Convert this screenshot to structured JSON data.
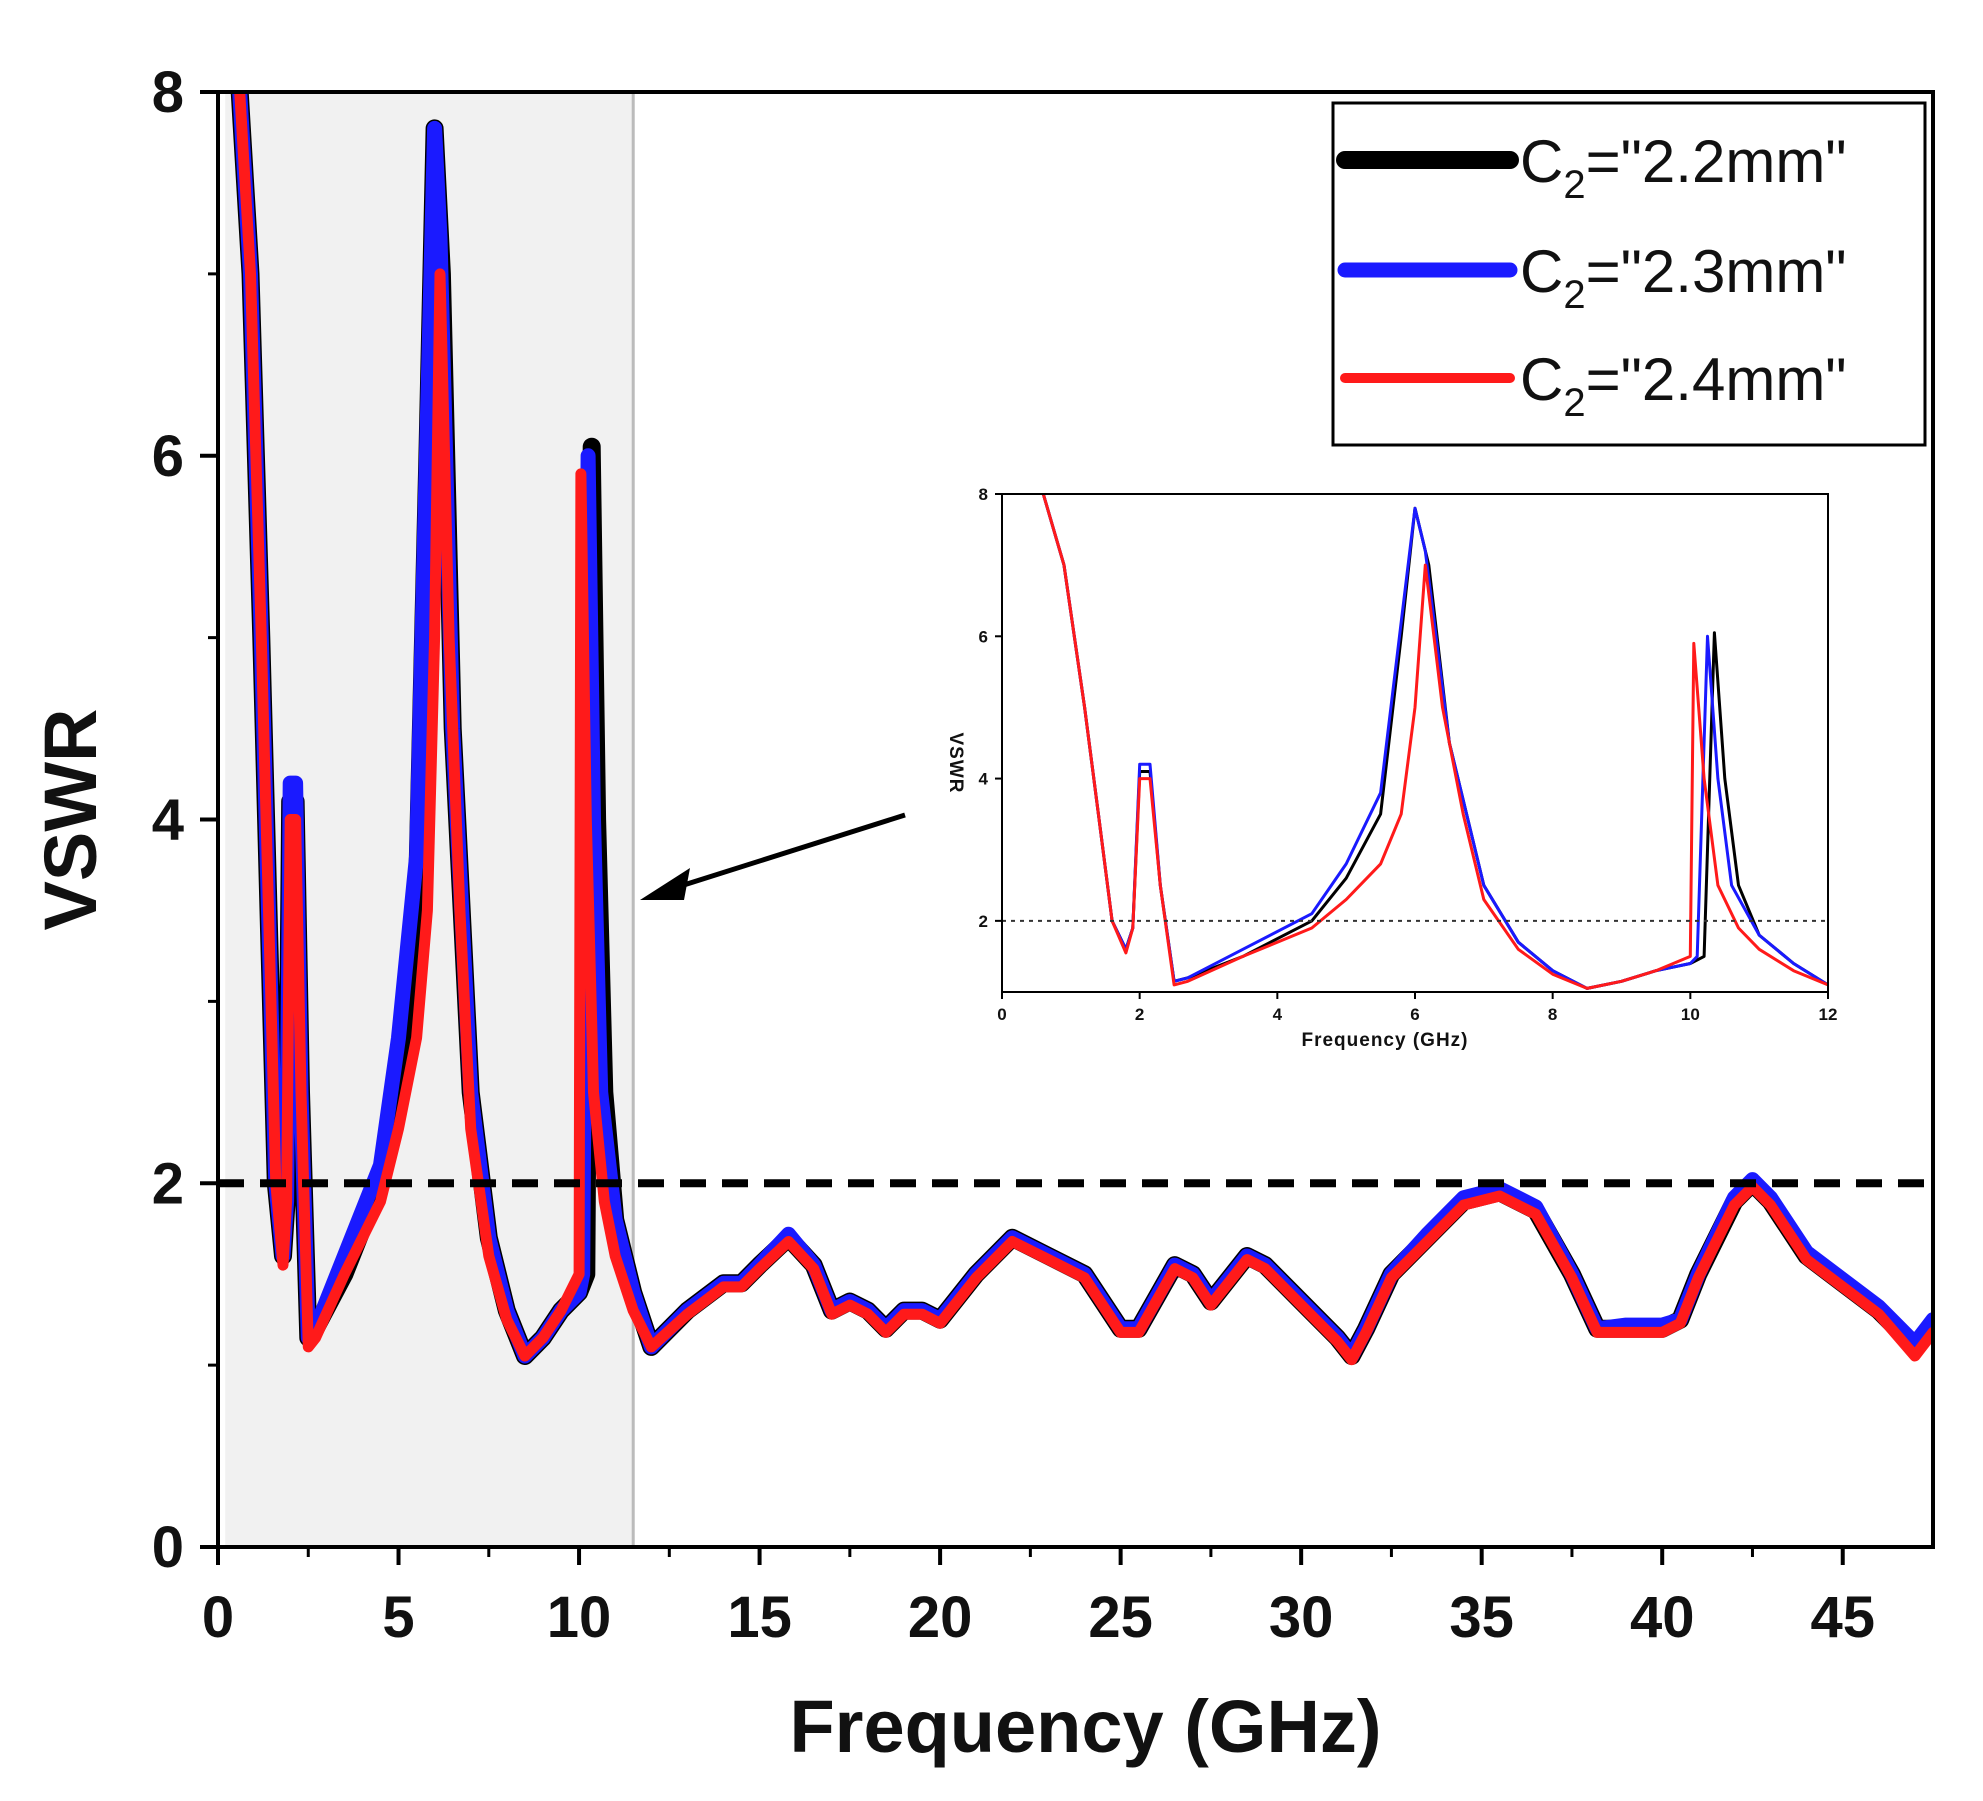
{
  "chart_data": {
    "type": "line",
    "xlabel": "Frequency (GHz)",
    "ylabel": "VSWR",
    "xlim": [
      0,
      47.5
    ],
    "ylim": [
      0,
      8
    ],
    "xticks": [
      "0",
      "5",
      "10",
      "15",
      "20",
      "25",
      "30",
      "35",
      "40",
      "45"
    ],
    "yticks": [
      "0",
      "2",
      "4",
      "6",
      "8"
    ],
    "reference_line": {
      "y": 2,
      "style": "dashed"
    },
    "highlight_region": {
      "x": [
        0.2,
        11.5
      ]
    },
    "annotation": "arrow from inset pointing to highlighted band",
    "legend_position": "top-right",
    "series": [
      {
        "name": "C2=\"2.2mm\"",
        "label_main": "C",
        "label_sub": "2",
        "label_rest": "=\"2.2mm\"",
        "color": "#000000",
        "points": [
          [
            0.6,
            8
          ],
          [
            0.9,
            7.0
          ],
          [
            1.2,
            5.0
          ],
          [
            1.4,
            3.5
          ],
          [
            1.6,
            2.0
          ],
          [
            1.8,
            1.6
          ],
          [
            1.9,
            1.9
          ],
          [
            2.0,
            4.1
          ],
          [
            2.15,
            4.1
          ],
          [
            2.3,
            2.5
          ],
          [
            2.5,
            1.15
          ],
          [
            2.7,
            1.2
          ],
          [
            3.5,
            1.5
          ],
          [
            4.5,
            2.0
          ],
          [
            5.0,
            2.6
          ],
          [
            5.5,
            3.5
          ],
          [
            5.8,
            6.0
          ],
          [
            6.0,
            7.8
          ],
          [
            6.2,
            7.0
          ],
          [
            6.5,
            4.5
          ],
          [
            7.0,
            2.5
          ],
          [
            7.5,
            1.7
          ],
          [
            8.0,
            1.3
          ],
          [
            8.5,
            1.05
          ],
          [
            9.0,
            1.15
          ],
          [
            9.5,
            1.3
          ],
          [
            10.0,
            1.4
          ],
          [
            10.2,
            1.5
          ],
          [
            10.35,
            6.05
          ],
          [
            10.5,
            4.0
          ],
          [
            10.7,
            2.5
          ],
          [
            11.0,
            1.8
          ],
          [
            11.5,
            1.4
          ],
          [
            12.0,
            1.1
          ],
          [
            13.0,
            1.3
          ],
          [
            14.0,
            1.45
          ],
          [
            14.5,
            1.45
          ],
          [
            15.0,
            1.55
          ],
          [
            15.8,
            1.7
          ],
          [
            16.5,
            1.55
          ],
          [
            17.0,
            1.3
          ],
          [
            17.5,
            1.35
          ],
          [
            18.0,
            1.3
          ],
          [
            18.5,
            1.2
          ],
          [
            19.0,
            1.3
          ],
          [
            19.5,
            1.3
          ],
          [
            20.0,
            1.25
          ],
          [
            21.0,
            1.5
          ],
          [
            22.0,
            1.7
          ],
          [
            23.0,
            1.6
          ],
          [
            24.0,
            1.5
          ],
          [
            25.0,
            1.2
          ],
          [
            25.5,
            1.2
          ],
          [
            26.5,
            1.55
          ],
          [
            27.0,
            1.5
          ],
          [
            27.5,
            1.35
          ],
          [
            28.5,
            1.6
          ],
          [
            29.0,
            1.55
          ],
          [
            30.0,
            1.35
          ],
          [
            31.0,
            1.15
          ],
          [
            31.4,
            1.05
          ],
          [
            31.8,
            1.2
          ],
          [
            32.5,
            1.5
          ],
          [
            33.5,
            1.7
          ],
          [
            34.5,
            1.9
          ],
          [
            35.5,
            1.95
          ],
          [
            36.5,
            1.85
          ],
          [
            37.5,
            1.5
          ],
          [
            38.2,
            1.2
          ],
          [
            39.0,
            1.2
          ],
          [
            40.0,
            1.2
          ],
          [
            40.5,
            1.25
          ],
          [
            41.0,
            1.5
          ],
          [
            42.0,
            1.9
          ],
          [
            42.5,
            2.0
          ],
          [
            43.0,
            1.9
          ],
          [
            44.0,
            1.6
          ],
          [
            45.0,
            1.45
          ],
          [
            46.0,
            1.3
          ],
          [
            47.0,
            1.1
          ],
          [
            47.5,
            1.2
          ]
        ]
      },
      {
        "name": "C2=\"2.3mm\"",
        "label_main": "C",
        "label_sub": "2",
        "label_rest": "=\"2.3mm\"",
        "color": "#1a1aff",
        "points": [
          [
            0.6,
            8
          ],
          [
            0.9,
            7.0
          ],
          [
            1.2,
            5.0
          ],
          [
            1.4,
            3.5
          ],
          [
            1.6,
            2.0
          ],
          [
            1.8,
            1.6
          ],
          [
            1.9,
            1.9
          ],
          [
            2.0,
            4.2
          ],
          [
            2.15,
            4.2
          ],
          [
            2.3,
            2.5
          ],
          [
            2.5,
            1.15
          ],
          [
            2.7,
            1.2
          ],
          [
            3.5,
            1.6
          ],
          [
            4.5,
            2.1
          ],
          [
            5.0,
            2.8
          ],
          [
            5.5,
            3.8
          ],
          [
            5.8,
            6.2
          ],
          [
            6.0,
            7.8
          ],
          [
            6.15,
            7.2
          ],
          [
            6.5,
            4.5
          ],
          [
            7.0,
            2.5
          ],
          [
            7.5,
            1.7
          ],
          [
            8.0,
            1.3
          ],
          [
            8.5,
            1.05
          ],
          [
            9.0,
            1.15
          ],
          [
            9.5,
            1.3
          ],
          [
            10.0,
            1.4
          ],
          [
            10.1,
            1.5
          ],
          [
            10.25,
            6.0
          ],
          [
            10.4,
            4.0
          ],
          [
            10.6,
            2.5
          ],
          [
            11.0,
            1.8
          ],
          [
            11.5,
            1.4
          ],
          [
            12.0,
            1.1
          ],
          [
            13.0,
            1.3
          ],
          [
            14.0,
            1.45
          ],
          [
            14.5,
            1.45
          ],
          [
            15.0,
            1.55
          ],
          [
            15.8,
            1.72
          ],
          [
            16.5,
            1.55
          ],
          [
            17.0,
            1.3
          ],
          [
            17.5,
            1.35
          ],
          [
            18.0,
            1.3
          ],
          [
            18.5,
            1.2
          ],
          [
            19.0,
            1.3
          ],
          [
            19.5,
            1.3
          ],
          [
            20.0,
            1.25
          ],
          [
            21.0,
            1.5
          ],
          [
            22.0,
            1.7
          ],
          [
            23.0,
            1.6
          ],
          [
            24.0,
            1.5
          ],
          [
            25.0,
            1.2
          ],
          [
            25.5,
            1.2
          ],
          [
            26.5,
            1.55
          ],
          [
            27.0,
            1.5
          ],
          [
            27.5,
            1.35
          ],
          [
            28.5,
            1.6
          ],
          [
            29.0,
            1.55
          ],
          [
            30.0,
            1.35
          ],
          [
            31.0,
            1.15
          ],
          [
            31.4,
            1.05
          ],
          [
            31.8,
            1.2
          ],
          [
            32.5,
            1.5
          ],
          [
            33.5,
            1.72
          ],
          [
            34.5,
            1.92
          ],
          [
            35.5,
            1.97
          ],
          [
            36.5,
            1.87
          ],
          [
            37.5,
            1.5
          ],
          [
            38.2,
            1.2
          ],
          [
            39.0,
            1.22
          ],
          [
            40.0,
            1.22
          ],
          [
            40.5,
            1.25
          ],
          [
            41.0,
            1.5
          ],
          [
            42.0,
            1.92
          ],
          [
            42.5,
            2.02
          ],
          [
            43.0,
            1.92
          ],
          [
            44.0,
            1.62
          ],
          [
            45.0,
            1.47
          ],
          [
            46.0,
            1.32
          ],
          [
            47.0,
            1.12
          ],
          [
            47.5,
            1.25
          ]
        ]
      },
      {
        "name": "C2=\"2.4mm\"",
        "label_main": "C",
        "label_sub": "2",
        "label_rest": "=\"2.4mm\"",
        "color": "#ff1a1a",
        "points": [
          [
            0.6,
            8
          ],
          [
            0.9,
            7.0
          ],
          [
            1.2,
            5.0
          ],
          [
            1.4,
            3.5
          ],
          [
            1.6,
            2.0
          ],
          [
            1.8,
            1.55
          ],
          [
            1.9,
            1.9
          ],
          [
            2.0,
            4.0
          ],
          [
            2.15,
            4.0
          ],
          [
            2.3,
            2.5
          ],
          [
            2.5,
            1.1
          ],
          [
            2.7,
            1.15
          ],
          [
            3.5,
            1.5
          ],
          [
            4.5,
            1.9
          ],
          [
            5.0,
            2.3
          ],
          [
            5.5,
            2.8
          ],
          [
            5.8,
            3.5
          ],
          [
            6.0,
            5.0
          ],
          [
            6.15,
            7.0
          ],
          [
            6.4,
            5.0
          ],
          [
            6.7,
            3.5
          ],
          [
            7.0,
            2.3
          ],
          [
            7.5,
            1.6
          ],
          [
            8.0,
            1.25
          ],
          [
            8.5,
            1.05
          ],
          [
            9.0,
            1.15
          ],
          [
            9.5,
            1.3
          ],
          [
            10.0,
            1.5
          ],
          [
            10.05,
            5.9
          ],
          [
            10.2,
            4.0
          ],
          [
            10.4,
            2.5
          ],
          [
            10.7,
            1.9
          ],
          [
            11.0,
            1.6
          ],
          [
            11.5,
            1.3
          ],
          [
            12.0,
            1.1
          ],
          [
            13.0,
            1.28
          ],
          [
            14.0,
            1.43
          ],
          [
            14.5,
            1.43
          ],
          [
            15.0,
            1.53
          ],
          [
            15.8,
            1.68
          ],
          [
            16.5,
            1.53
          ],
          [
            17.0,
            1.28
          ],
          [
            17.5,
            1.33
          ],
          [
            18.0,
            1.28
          ],
          [
            18.5,
            1.18
          ],
          [
            19.0,
            1.28
          ],
          [
            19.5,
            1.28
          ],
          [
            20.0,
            1.23
          ],
          [
            21.0,
            1.48
          ],
          [
            22.0,
            1.68
          ],
          [
            23.0,
            1.58
          ],
          [
            24.0,
            1.48
          ],
          [
            25.0,
            1.18
          ],
          [
            25.5,
            1.18
          ],
          [
            26.5,
            1.53
          ],
          [
            27.0,
            1.48
          ],
          [
            27.5,
            1.33
          ],
          [
            28.5,
            1.58
          ],
          [
            29.0,
            1.53
          ],
          [
            30.0,
            1.33
          ],
          [
            31.0,
            1.13
          ],
          [
            31.4,
            1.03
          ],
          [
            31.8,
            1.18
          ],
          [
            32.5,
            1.48
          ],
          [
            33.5,
            1.68
          ],
          [
            34.5,
            1.88
          ],
          [
            35.5,
            1.93
          ],
          [
            36.5,
            1.83
          ],
          [
            37.5,
            1.48
          ],
          [
            38.2,
            1.18
          ],
          [
            39.0,
            1.18
          ],
          [
            40.0,
            1.18
          ],
          [
            40.5,
            1.23
          ],
          [
            41.0,
            1.48
          ],
          [
            42.0,
            1.88
          ],
          [
            42.5,
            1.98
          ],
          [
            43.0,
            1.88
          ],
          [
            44.0,
            1.58
          ],
          [
            45.0,
            1.43
          ],
          [
            46.0,
            1.28
          ],
          [
            47.0,
            1.05
          ],
          [
            47.5,
            1.18
          ]
        ]
      }
    ],
    "inset": {
      "xlabel": "Frequency (GHz)",
      "ylabel": "VSWR",
      "xlim": [
        0,
        12
      ],
      "ylim": [
        1,
        8
      ],
      "xticks": [
        "0",
        "2",
        "4",
        "6",
        "8",
        "10",
        "12"
      ],
      "yticks": [
        "2",
        "4",
        "6",
        "8"
      ],
      "reference_line": {
        "y": 2,
        "style": "dotted"
      }
    }
  }
}
